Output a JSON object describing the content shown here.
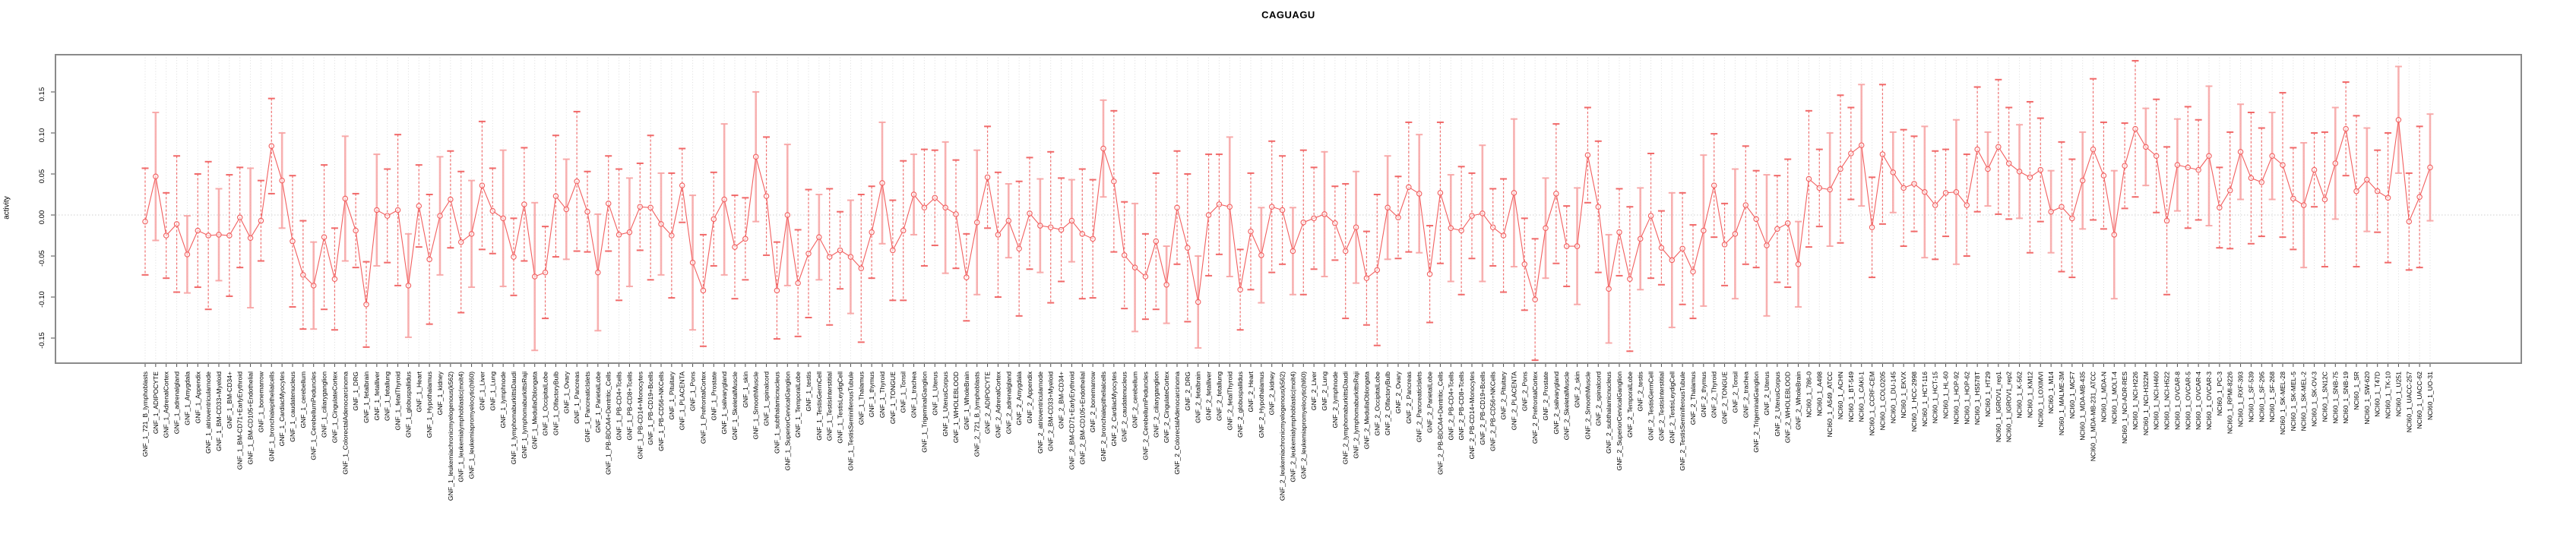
{
  "page": {
    "title": "CAGUAGU"
  },
  "chart_data": {
    "type": "scatter",
    "title": "CAGUAGU",
    "xlabel": "",
    "ylabel": "activity",
    "ylim": [
      -0.181,
      0.195
    ],
    "yticks": [
      0.15,
      0.1,
      0.05,
      0.0,
      -0.05,
      -0.1,
      -0.15
    ],
    "grid": "vertical dotted gridline at every category; dotted horizontal line at y=0",
    "legend": "none",
    "marker": "open-circle",
    "error_bars": true,
    "colors": {
      "series": "#f25f5f",
      "error_bar_light": "#f7a3a3",
      "error_bar_dark": "#ef5a5a",
      "grid": "#dcdcdc",
      "zero_line": "#cfcfcf",
      "frame": "#8a8a8a",
      "text": "#000000",
      "background": "#ffffff"
    },
    "categories": [
      "GNF_1_721_B_lymphoblasts",
      "GNF_1_ADIPOCYTE",
      "GNF_1_AdrenalCortex",
      "GNF_1_adrenalgland",
      "GNF_1_Amygdala",
      "GNF_1_Appendix",
      "GNF_1_atrioventricularnode",
      "GNF_1_BM-CD33+Myeloid",
      "GNF_1_BM-CD34+",
      "GNF_1_BM-CD71+EarlyErythroid",
      "GNF_1_BM-CD105+Endothelial",
      "GNF_1_bonemarrow",
      "GNF_1_bronchialepithelialcells",
      "GNF_1_CardiacMyocytes",
      "GNF_1_caudatenucleus",
      "GNF_1_cerebellum",
      "GNF_1_CerebellumPeduncles",
      "GNF_1_ciliaryganglion",
      "GNF_1_CingulateCortex",
      "GNF_1_ColorectalAdenocarcinoma",
      "GNF_1_DRG",
      "GNF_1_fetalbrain",
      "GNF_1_fetalliver",
      "GNF_1_fetallung",
      "GNF_1_fetalThyroid",
      "GNF_1_globuspallidus",
      "GNF_1_Heart",
      "GNF_1_Hypothalamus",
      "GNF_1_kidney",
      "GNF_1_leukemiachronicmyelogenous(k562)",
      "GNF_1_leukemialymphoblastic(molt4)",
      "GNF_1_leukemiapromyelocytic(hl60)",
      "GNF_1_Liver",
      "GNF_1_Lung",
      "GNF_1_lymphnode",
      "GNF_1_lymphomaburkittsDaudi",
      "GNF_1_lymphomaburkittsRaji",
      "GNF_1_MedullaOblongata",
      "GNF_1_OccipitalLobe",
      "GNF_1_OlfactoryBulb",
      "GNF_1_Ovary",
      "GNF_1_Pancreas",
      "GNF_1_PancreaticIslets",
      "GNF_1_ParietalLobe",
      "GNF_1_PB-BDCA4+Dentritic_Cells",
      "GNF_1_PB-CD4+Tcells",
      "GNF_1_PB-CD8+Tcells",
      "GNF_1_PB-CD14+Monocytes",
      "GNF_1_PB-CD19+Bcells",
      "GNF_1_PB-CD56+NKCells",
      "GNF_1_Pituitary",
      "GNF_1_PLACENTA",
      "GNF_1_Pons",
      "GNF_1_PrefrontalCortex",
      "GNF_1_Prostate",
      "GNF_1_salivarygland",
      "GNF_1_SkeletalMuscle",
      "GNF_1_skin",
      "GNF_1_SmoothMuscle",
      "GNF_1_spinalcord",
      "GNF_1_subthalamicnucleus",
      "GNF_1_SuperiorCervicalGanglion",
      "GNF_1_TemporalLobe",
      "GNF_1_testis",
      "GNF_1_TestisGermCell",
      "GNF_1_TestisInterstitial",
      "GNF_1_TestisLeydigCell",
      "GNF_1_TestisSeminiferousTubule",
      "GNF_1_Thalamus",
      "GNF_1_thymus",
      "GNF_1_Thyroid",
      "GNF_1_TONGUE",
      "GNF_1_Tonsil",
      "GNF_1_trachea",
      "GNF_1_TrigeminalGanglion",
      "GNF_1_Uterus",
      "GNF_1_UterusCorpus",
      "GNF_1_WHOLEBLOOD",
      "GNF_1_WholeBrain",
      "GNF_2_721_B_lymphoblasts",
      "GNF_2_ADIPOCYTE",
      "GNF_2_AdrenalCortex",
      "GNF_2_adrenalgland",
      "GNF_2_Amygdala",
      "GNF_2_Appendix",
      "GNF_2_atrioventricularnode",
      "GNF_2_BM-CD33+Myeloid",
      "GNF_2_BM-CD34+",
      "GNF_2_BM-CD71+EarlyErythroid",
      "GNF_2_BM-CD105+Endothelial",
      "GNF_2_bonemarrow",
      "GNF_2_bronchialepithelialcells",
      "GNF_2_CardiacMyocytes",
      "GNF_2_caudatenucleus",
      "GNF_2_cerebellum",
      "GNF_2_CerebellumPeduncles",
      "GNF_2_ciliaryganglion",
      "GNF_2_CingulateCortex",
      "GNF_2_ColorectalAdenocarcinoma",
      "GNF_2_DRG",
      "GNF_2_fetalbrain",
      "GNF_2_fetalliver",
      "GNF_2_fetallung",
      "GNF_2_fetalThyroid",
      "GNF_2_globuspallidus",
      "GNF_2_Heart",
      "GNF_2_Hypothalamus",
      "GNF_2_kidney",
      "GNF_2_leukemiachronicmyelogenous(k562)",
      "GNF_2_leukemialymphoblastic(molt4)",
      "GNF_2_leukemiapromyelocytic(hl60)",
      "GNF_2_Liver",
      "GNF_2_Lung",
      "GNF_2_lymphnode",
      "GNF_2_lymphomaburkittsDaudi",
      "GNF_2_lymphomaburkittsRaji",
      "GNF_2_MedullaOblongata",
      "GNF_2_OccipitalLobe",
      "GNF_2_OlfactoryBulb",
      "GNF_2_Ovary",
      "GNF_2_Pancreas",
      "GNF_2_PancreaticIslets",
      "GNF_2_ParietalLobe",
      "GNF_2_PB-BDCA4+Dentritic_Cells",
      "GNF_2_PB-CD4+Tcells",
      "GNF_2_PB-CD8+Tcells",
      "GNF_2_PB-CD14+Monocytes",
      "GNF_2_PB-CD19+Bcells",
      "GNF_2_PB-CD56+NKCells",
      "GNF_2_Pituitary",
      "GNF_2_PLACENTA",
      "GNF_2_Pons",
      "GNF_2_PrefrontalCortex",
      "GNF_2_Prostate",
      "GNF_2_salivarygland",
      "GNF_2_SkeletalMuscle",
      "GNF_2_skin",
      "GNF_2_SmoothMuscle",
      "GNF_2_spinalcord",
      "GNF_2_subthalamicnucleus",
      "GNF_2_SuperiorCervicalGanglion",
      "GNF_2_TemporalLobe",
      "GNF_2_testis",
      "GNF_2_TestisGermCell",
      "GNF_2_TestisInterstitial",
      "GNF_2_TestisLeydigCell",
      "GNF_2_TestisSeminiferousTubule",
      "GNF_2_Thalamus",
      "GNF_2_thymus",
      "GNF_2_Thyroid",
      "GNF_2_TONGUE",
      "GNF_2_Tonsil",
      "GNF_2_trachea",
      "GNF_2_TrigeminalGanglion",
      "GNF_2_Uterus",
      "GNF_2_UterusCorpus",
      "GNF_2_WHOLEBLOOD",
      "GNF_2_WholeBrain",
      "NCI60_1_786-0",
      "NCI60_1_A498",
      "NCI60_1_A549_ATCC",
      "NCI60_1_ACHN",
      "NCI60_1_BT-549",
      "NCI60_1_CAKI-1",
      "NCI60_1_CCRF-CEM",
      "NCI60_1_COLO205",
      "NCI60_1_DU-145",
      "NCI60_1_EKVX",
      "NCI60_1_HCC-2998",
      "NCI60_1_HCT-116",
      "NCI60_1_HCT-15",
      "NCI60_1_HL-60",
      "NCI60_1_HOP-92",
      "NCI60_1_HOP-62",
      "NCI60_1_HS578T",
      "NCI60_1_HT29",
      "NCI60_1_IGROV1_rep1",
      "NCI60_1_IGROV1_rep2",
      "NCI60_1_K-562",
      "NCI60_1_KM12",
      "NCI60_1_LOXIMVI",
      "NCI60_1_M14",
      "NCI60_1_MALME-3M",
      "NCI60_1_MCF7",
      "NCI60_1_MDA-MB-435",
      "NCI60_1_MDA-MB-231_ATCC",
      "NCI60_1_MDA-N",
      "NCI60_1_MOLT-4",
      "NCI60_1_NCI-ADR-RES",
      "NCI60_1_NCI-H226",
      "NCI60_1_NCI-H322M",
      "NCI60_1_NCI-H460",
      "NCI60_1_NCI-H522",
      "NCI60_1_OVCAR-8",
      "NCI60_1_OVCAR-5",
      "NCI60_1_OVCAR-4",
      "NCI60_1_OVCAR-3",
      "NCI60_1_PC-3",
      "NCI60_1_RPMI-8226",
      "NCI60_1_RXF-393",
      "NCI60_1_SF-539",
      "NCI60_1_SF-295",
      "NCI60_1_SF-268",
      "NCI60_1_SK-MEL-28",
      "NCI60_1_SK-MEL-5",
      "NCI60_1_SK-MEL-2",
      "NCI60_1_SK-OV-3",
      "NCI60_1_SN12C",
      "NCI60_1_SNB-75",
      "NCI60_1_SNB-19",
      "NCI60_1_SR",
      "NCI60_1_SW-620",
      "NCI60_1_T47D",
      "NCI60_1_TK-10",
      "NCI60_1_U251",
      "NCI60_1_UACC-257",
      "NCI60_1_UACC-62",
      "NCI60_1_UO-31"
    ],
    "values": [
      -0.008,
      0.047,
      -0.025,
      -0.011,
      -0.048,
      -0.019,
      -0.025,
      -0.024,
      -0.025,
      -0.003,
      -0.028,
      -0.007,
      0.084,
      0.042,
      -0.032,
      -0.073,
      -0.086,
      -0.027,
      -0.078,
      0.02,
      -0.019,
      -0.109,
      0.006,
      -0.001,
      0.006,
      -0.086,
      0.011,
      -0.054,
      -0.001,
      0.019,
      -0.033,
      -0.023,
      0.036,
      0.005,
      -0.004,
      -0.051,
      0.013,
      -0.075,
      -0.07,
      0.023,
      0.007,
      0.041,
      0.004,
      -0.07,
      0.014,
      -0.024,
      -0.021,
      0.01,
      0.009,
      -0.011,
      -0.025,
      0.036,
      -0.058,
      -0.092,
      -0.005,
      0.019,
      -0.039,
      -0.029,
      0.071,
      0.023,
      -0.092,
      0.0,
      -0.083,
      -0.047,
      -0.027,
      -0.051,
      -0.043,
      -0.051,
      -0.065,
      -0.021,
      0.039,
      -0.043,
      -0.019,
      0.025,
      0.009,
      0.021,
      0.009,
      0.001,
      -0.076,
      -0.009,
      0.046,
      -0.024,
      -0.007,
      -0.041,
      0.002,
      -0.013,
      -0.015,
      -0.018,
      -0.007,
      -0.023,
      -0.029,
      0.081,
      0.041,
      -0.049,
      -0.064,
      -0.075,
      -0.032,
      -0.085,
      0.009,
      -0.04,
      -0.106,
      0.0,
      0.013,
      0.01,
      -0.091,
      -0.02,
      -0.049,
      0.01,
      0.006,
      -0.044,
      -0.009,
      -0.004,
      0.001,
      -0.01,
      -0.044,
      -0.015,
      -0.077,
      -0.067,
      0.009,
      -0.003,
      0.034,
      0.026,
      -0.072,
      0.027,
      -0.016,
      -0.019,
      -0.001,
      0.002,
      -0.015,
      -0.025,
      0.027,
      -0.06,
      -0.103,
      -0.016,
      0.026,
      -0.038,
      -0.038,
      0.073,
      0.01,
      -0.09,
      -0.021,
      -0.078,
      -0.029,
      -0.001,
      -0.04,
      -0.055,
      -0.041,
      -0.069,
      -0.019,
      0.036,
      -0.036,
      -0.023,
      0.012,
      -0.005,
      -0.037,
      -0.017,
      -0.01,
      -0.06,
      0.044,
      0.033,
      0.031,
      0.056,
      0.075,
      0.085,
      -0.015,
      0.074,
      0.052,
      0.033,
      0.038,
      0.028,
      0.012,
      0.027,
      0.028,
      0.012,
      0.08,
      0.056,
      0.083,
      0.063,
      0.053,
      0.046,
      0.055,
      0.004,
      0.01,
      -0.004,
      0.042,
      0.08,
      0.048,
      -0.024,
      0.06,
      0.105,
      0.083,
      0.072,
      -0.007,
      0.061,
      0.058,
      0.055,
      0.072,
      0.009,
      0.03,
      0.077,
      0.045,
      0.04,
      0.072,
      0.061,
      0.02,
      0.012,
      0.055,
      0.019,
      0.063,
      0.105,
      0.029,
      0.043,
      0.029,
      0.021,
      0.116,
      -0.008,
      0.022,
      0.058
    ],
    "errors": [
      0.065,
      0.078,
      0.052,
      0.083,
      0.047,
      0.069,
      0.09,
      0.056,
      0.074,
      0.061,
      0.085,
      0.049,
      0.058,
      0.058,
      0.08,
      0.066,
      0.053,
      0.088,
      0.062,
      0.076,
      0.045,
      0.052,
      0.068,
      0.057,
      0.092,
      0.063,
      0.05,
      0.079,
      0.072,
      0.059,
      0.086,
      0.065,
      0.078,
      0.052,
      0.083,
      0.047,
      0.069,
      0.09,
      0.056,
      0.074,
      0.061,
      0.085,
      0.049,
      0.071,
      0.058,
      0.08,
      0.066,
      0.053,
      0.088,
      0.062,
      0.076,
      0.045,
      0.082,
      0.068,
      0.057,
      0.092,
      0.063,
      0.05,
      0.079,
      0.072,
      0.059,
      0.086,
      0.065,
      0.078,
      0.052,
      0.083,
      0.047,
      0.069,
      0.09,
      0.056,
      0.074,
      0.061,
      0.085,
      0.049,
      0.071,
      0.058,
      0.08,
      0.066,
      0.053,
      0.088,
      0.062,
      0.076,
      0.045,
      0.082,
      0.068,
      0.057,
      0.092,
      0.063,
      0.05,
      0.079,
      0.072,
      0.059,
      0.086,
      0.065,
      0.078,
      0.052,
      0.083,
      0.047,
      0.069,
      0.09,
      0.056,
      0.074,
      0.061,
      0.085,
      0.049,
      0.071,
      0.058,
      0.08,
      0.066,
      0.053,
      0.088,
      0.062,
      0.076,
      0.045,
      0.082,
      0.068,
      0.057,
      0.092,
      0.063,
      0.05,
      0.079,
      0.072,
      0.059,
      0.086,
      0.065,
      0.078,
      0.052,
      0.083,
      0.047,
      0.069,
      0.09,
      0.056,
      0.074,
      0.061,
      0.085,
      0.049,
      0.071,
      0.058,
      0.08,
      0.066,
      0.053,
      0.088,
      0.062,
      0.076,
      0.045,
      0.082,
      0.068,
      0.057,
      0.092,
      0.063,
      0.05,
      0.079,
      0.072,
      0.059,
      0.086,
      0.065,
      0.078,
      0.052,
      0.083,
      0.047,
      0.069,
      0.09,
      0.056,
      0.074,
      0.061,
      0.085,
      0.049,
      0.071,
      0.058,
      0.08,
      0.066,
      0.053,
      0.088,
      0.062,
      0.076,
      0.045,
      0.082,
      0.068,
      0.057,
      0.092,
      0.063,
      0.05,
      0.079,
      0.072,
      0.059,
      0.086,
      0.065,
      0.078,
      0.052,
      0.083,
      0.047,
      0.069,
      0.09,
      0.056,
      0.074,
      0.061,
      0.085,
      0.049,
      0.071,
      0.058,
      0.08,
      0.066,
      0.053,
      0.088,
      0.062,
      0.076,
      0.045,
      0.082,
      0.068,
      0.057,
      0.092,
      0.063,
      0.05,
      0.079,
      0.065,
      0.059,
      0.086,
      0.065
    ]
  }
}
